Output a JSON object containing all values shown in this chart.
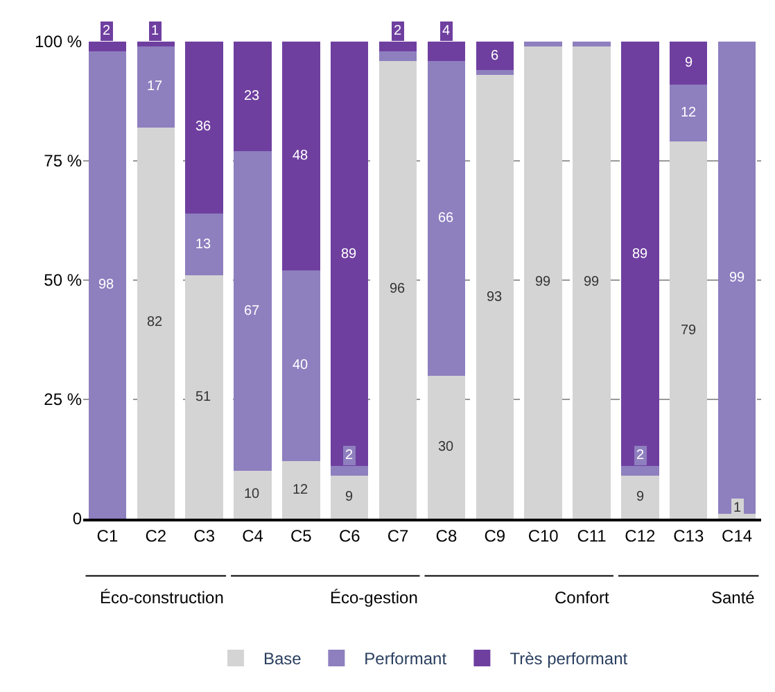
{
  "chart_data": {
    "type": "bar",
    "stacked": true,
    "categories": [
      "C1",
      "C2",
      "C3",
      "C4",
      "C5",
      "C6",
      "C7",
      "C8",
      "C9",
      "C10",
      "C11",
      "C12",
      "C13",
      "C14"
    ],
    "series": [
      {
        "name": "Base",
        "color": "#d4d4d4",
        "values": [
          null,
          82,
          51,
          10,
          12,
          9,
          96,
          30,
          93,
          99,
          99,
          9,
          79,
          1
        ],
        "value_labels": [
          null,
          "82",
          "51",
          "10",
          "12",
          "9",
          "96",
          "30",
          "93",
          "99",
          "99",
          "9",
          "79",
          "1"
        ]
      },
      {
        "name": "Performant",
        "color": "#8e7fbf",
        "values": [
          98,
          17,
          13,
          67,
          40,
          2,
          2,
          66,
          1,
          1,
          1,
          2,
          12,
          99
        ],
        "value_labels": [
          "98",
          "17",
          "13",
          "67",
          "40",
          "2",
          null,
          "66",
          null,
          null,
          null,
          "2",
          "12",
          "99"
        ]
      },
      {
        "name": "Très performant",
        "color": "#6f3fa0",
        "values": [
          2,
          1,
          36,
          23,
          48,
          89,
          2,
          4,
          6,
          null,
          null,
          89,
          9,
          null
        ],
        "value_labels": [
          "2",
          "1",
          "36",
          "23",
          "48",
          "89",
          "2",
          "4",
          "6",
          null,
          null,
          "89",
          "9",
          null
        ]
      }
    ],
    "ylim": [
      0,
      100
    ],
    "yticks": [
      {
        "value": 0,
        "label": "0"
      },
      {
        "value": 25,
        "label": "25 %"
      },
      {
        "value": 50,
        "label": "50 %"
      },
      {
        "value": 75,
        "label": "75 %"
      },
      {
        "value": 100,
        "label": "100 %"
      }
    ],
    "grid": "y",
    "legend": "bottom",
    "annotations": [
      "Éco-construction",
      "Éco-gestion",
      "Confort",
      "Santé"
    ]
  }
}
